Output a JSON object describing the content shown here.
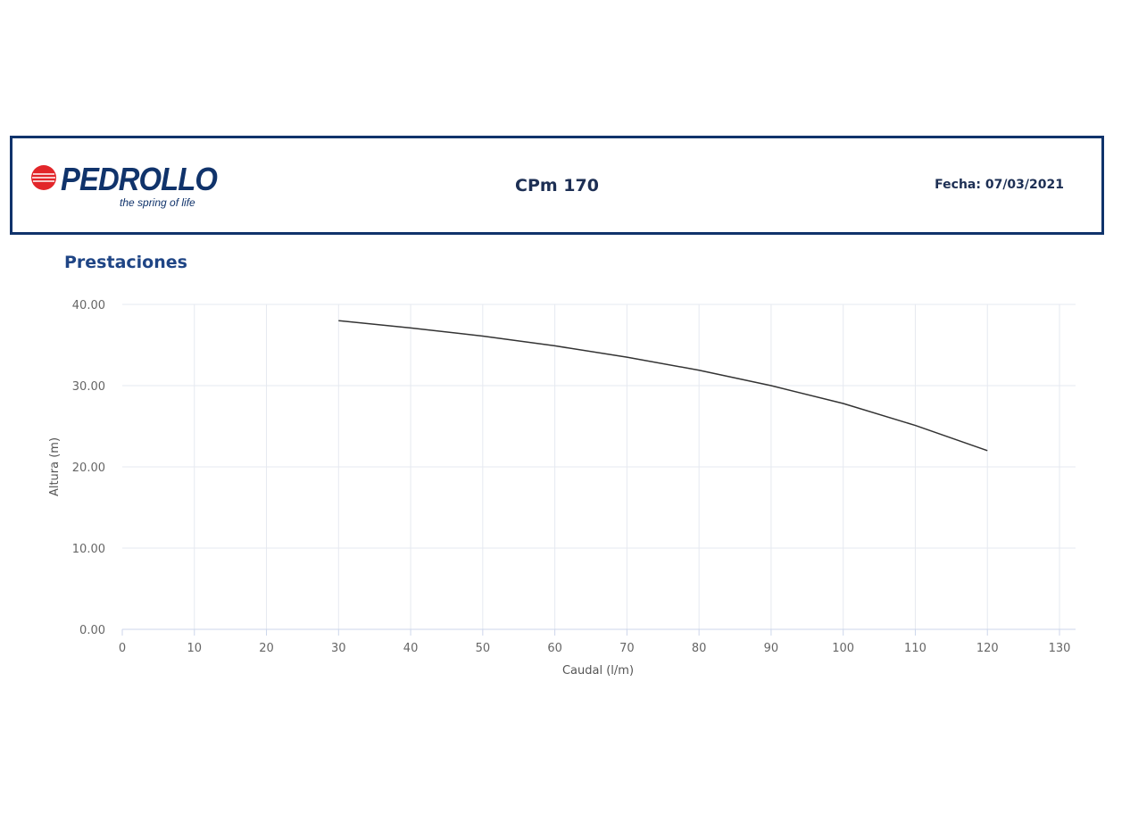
{
  "header": {
    "logo_text": "PEDROLLO",
    "tagline": "the spring of life",
    "model": "CPm 170",
    "date": "Fecha: 07/03/2021"
  },
  "section": {
    "title": "Prestaciones"
  },
  "colors": {
    "brand": "#10336b",
    "section_title": "#1f4585",
    "logo_red": "#e2262a",
    "curve": "#333333",
    "grid": "#e6e9f0"
  },
  "chart_data": {
    "type": "line",
    "title": "",
    "xlabel": "Caudal (l/m)",
    "ylabel": "Altura (m)",
    "xlim": [
      0,
      130
    ],
    "ylim": [
      0,
      40
    ],
    "xticks": [
      0,
      10,
      20,
      30,
      40,
      50,
      60,
      70,
      80,
      90,
      100,
      110,
      120,
      130
    ],
    "xtick_labels": [
      "0",
      "10",
      "20",
      "30",
      "40",
      "50",
      "60",
      "70",
      "80",
      "90",
      "100",
      "110",
      "120",
      "130"
    ],
    "yticks": [
      0,
      10,
      20,
      30,
      40
    ],
    "ytick_labels": [
      "0.00",
      "10.00",
      "20.00",
      "30.00",
      "40.00"
    ],
    "grid": true,
    "series": [
      {
        "x": [
          30,
          40,
          50,
          60,
          70,
          80,
          90,
          100,
          110,
          120
        ],
        "y": [
          38.0,
          37.1,
          36.1,
          34.9,
          33.5,
          31.9,
          30.0,
          27.8,
          25.1,
          22.0
        ]
      }
    ]
  }
}
